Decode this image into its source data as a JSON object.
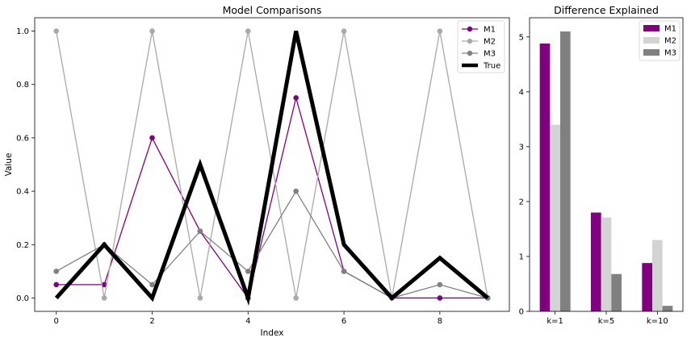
{
  "chart_data": [
    {
      "type": "line",
      "title": "Model Comparisons",
      "xlabel": "Index",
      "ylabel": "Value",
      "xlim": [
        -0.45,
        9.45
      ],
      "ylim": [
        -0.05,
        1.05
      ],
      "xticks": [
        "0",
        "2",
        "4",
        "6",
        "8"
      ],
      "xtick_values": [
        0,
        2,
        4,
        6,
        8
      ],
      "yticks": [
        "0.0",
        "0.2",
        "0.4",
        "0.6",
        "0.8",
        "1.0"
      ],
      "ytick_values": [
        0,
        0.2,
        0.4,
        0.6,
        0.8,
        1.0
      ],
      "x": [
        0,
        1,
        2,
        3,
        4,
        5,
        6,
        7,
        8,
        9
      ],
      "legend_position": "top-right",
      "series": [
        {
          "name": "M1",
          "color": "#800080",
          "marker": true,
          "width": 1.3,
          "values": [
            0.05,
            0.05,
            0.6,
            0.25,
            0.0,
            0.75,
            0.1,
            0.0,
            0.0,
            0.0
          ]
        },
        {
          "name": "M2",
          "color": "#a9a9a9",
          "marker": true,
          "width": 1.3,
          "values": [
            1.0,
            0.0,
            1.0,
            0.0,
            1.0,
            0.0,
            1.0,
            0.0,
            1.0,
            0.0
          ]
        },
        {
          "name": "M3",
          "color": "#808080",
          "marker": true,
          "width": 1.3,
          "values": [
            0.1,
            0.2,
            0.05,
            0.25,
            0.1,
            0.4,
            0.1,
            0.0,
            0.05,
            0.0
          ]
        },
        {
          "name": "True",
          "color": "#000000",
          "marker": false,
          "width": 5,
          "values": [
            0.0,
            0.2,
            0.0,
            0.5,
            0.0,
            1.0,
            0.2,
            0.0,
            0.15,
            0.0
          ]
        }
      ]
    },
    {
      "type": "bar",
      "title": "Difference Explained",
      "xlabel": "",
      "ylabel": "",
      "categories": [
        "k=1",
        "k=5",
        "k=10"
      ],
      "ylim": [
        0,
        5.35
      ],
      "yticks": [
        "0",
        "1",
        "2",
        "3",
        "4",
        "5"
      ],
      "ytick_values": [
        0,
        1,
        2,
        3,
        4,
        5
      ],
      "legend_position": "top-right",
      "series": [
        {
          "name": "M1",
          "color": "#800080",
          "values": [
            4.88,
            1.8,
            0.88
          ]
        },
        {
          "name": "M2",
          "color": "#d3d3d3",
          "values": [
            3.4,
            1.71,
            1.3
          ]
        },
        {
          "name": "M3",
          "color": "#808080",
          "values": [
            5.1,
            0.68,
            0.1
          ]
        }
      ]
    }
  ]
}
